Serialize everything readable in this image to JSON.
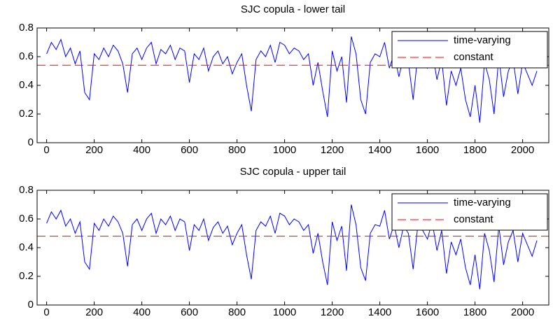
{
  "chart_data": [
    {
      "type": "line",
      "title": "SJC copula - lower tail",
      "x": [
        0,
        20,
        40,
        60,
        80,
        100,
        120,
        140,
        160,
        180,
        200,
        220,
        240,
        260,
        280,
        300,
        320,
        340,
        360,
        380,
        400,
        420,
        440,
        460,
        480,
        500,
        520,
        540,
        560,
        580,
        600,
        620,
        640,
        660,
        680,
        700,
        720,
        740,
        760,
        780,
        800,
        820,
        840,
        860,
        880,
        900,
        920,
        940,
        960,
        980,
        1000,
        1020,
        1040,
        1060,
        1080,
        1100,
        1120,
        1140,
        1160,
        1180,
        1200,
        1220,
        1240,
        1260,
        1280,
        1300,
        1320,
        1340,
        1360,
        1380,
        1400,
        1420,
        1440,
        1460,
        1480,
        1500,
        1520,
        1540,
        1560,
        1580,
        1600,
        1620,
        1640,
        1660,
        1680,
        1700,
        1720,
        1740,
        1760,
        1780,
        1800,
        1820,
        1840,
        1860,
        1880,
        1900,
        1920,
        1940,
        1960,
        1980,
        2000,
        2020,
        2040,
        2060
      ],
      "series": [
        {
          "name": "time-varying",
          "color": "#0000ff",
          "linestyle": "solid",
          "values": [
            0.62,
            0.7,
            0.65,
            0.72,
            0.6,
            0.66,
            0.55,
            0.64,
            0.35,
            0.3,
            0.62,
            0.58,
            0.66,
            0.6,
            0.68,
            0.64,
            0.55,
            0.35,
            0.62,
            0.66,
            0.58,
            0.66,
            0.7,
            0.55,
            0.65,
            0.62,
            0.68,
            0.58,
            0.66,
            0.64,
            0.42,
            0.62,
            0.58,
            0.66,
            0.5,
            0.6,
            0.64,
            0.55,
            0.6,
            0.48,
            0.56,
            0.62,
            0.4,
            0.22,
            0.58,
            0.64,
            0.6,
            0.68,
            0.56,
            0.7,
            0.68,
            0.62,
            0.66,
            0.64,
            0.58,
            0.62,
            0.4,
            0.56,
            0.36,
            0.18,
            0.64,
            0.5,
            0.6,
            0.28,
            0.74,
            0.62,
            0.3,
            0.2,
            0.56,
            0.62,
            0.6,
            0.7,
            0.52,
            0.62,
            0.46,
            0.6,
            0.56,
            0.3,
            0.62,
            0.58,
            0.52,
            0.64,
            0.44,
            0.58,
            0.26,
            0.5,
            0.4,
            0.52,
            0.3,
            0.18,
            0.4,
            0.14,
            0.56,
            0.44,
            0.2,
            0.6,
            0.32,
            0.5,
            0.58,
            0.34,
            0.56,
            0.48,
            0.4,
            0.5
          ]
        },
        {
          "name": "constant",
          "color": "#ff0000",
          "linestyle": "dashed",
          "x": [
            -40,
            2110
          ],
          "values": [
            0.54,
            0.54
          ]
        }
      ],
      "xlim": [
        -40,
        2110
      ],
      "ylim": [
        0,
        0.8
      ],
      "xticks": [
        0,
        200,
        400,
        600,
        800,
        1000,
        1200,
        1400,
        1600,
        1800,
        2000
      ],
      "yticks": [
        0,
        0.2,
        0.4,
        0.6,
        0.8
      ],
      "legend": "upper right"
    },
    {
      "type": "line",
      "title": "SJC copula - upper tail",
      "x": [
        0,
        20,
        40,
        60,
        80,
        100,
        120,
        140,
        160,
        180,
        200,
        220,
        240,
        260,
        280,
        300,
        320,
        340,
        360,
        380,
        400,
        420,
        440,
        460,
        480,
        500,
        520,
        540,
        560,
        580,
        600,
        620,
        640,
        660,
        680,
        700,
        720,
        740,
        760,
        780,
        800,
        820,
        840,
        860,
        880,
        900,
        920,
        940,
        960,
        980,
        1000,
        1020,
        1040,
        1060,
        1080,
        1100,
        1120,
        1140,
        1160,
        1180,
        1200,
        1220,
        1240,
        1260,
        1280,
        1300,
        1320,
        1340,
        1360,
        1380,
        1400,
        1420,
        1440,
        1460,
        1480,
        1500,
        1520,
        1540,
        1560,
        1580,
        1600,
        1620,
        1640,
        1660,
        1680,
        1700,
        1720,
        1740,
        1760,
        1780,
        1800,
        1820,
        1840,
        1860,
        1880,
        1900,
        1920,
        1940,
        1960,
        1980,
        2000,
        2020,
        2040,
        2060
      ],
      "series": [
        {
          "name": "time-varying",
          "color": "#0000ff",
          "linestyle": "solid",
          "values": [
            0.57,
            0.65,
            0.6,
            0.66,
            0.55,
            0.6,
            0.5,
            0.58,
            0.3,
            0.25,
            0.57,
            0.52,
            0.6,
            0.55,
            0.62,
            0.58,
            0.5,
            0.27,
            0.56,
            0.6,
            0.52,
            0.6,
            0.64,
            0.5,
            0.6,
            0.56,
            0.62,
            0.52,
            0.6,
            0.58,
            0.38,
            0.56,
            0.52,
            0.6,
            0.45,
            0.54,
            0.58,
            0.5,
            0.55,
            0.42,
            0.5,
            0.56,
            0.35,
            0.18,
            0.52,
            0.58,
            0.55,
            0.62,
            0.5,
            0.64,
            0.62,
            0.56,
            0.6,
            0.58,
            0.52,
            0.56,
            0.36,
            0.5,
            0.3,
            0.14,
            0.58,
            0.45,
            0.55,
            0.24,
            0.7,
            0.56,
            0.26,
            0.17,
            0.5,
            0.56,
            0.55,
            0.66,
            0.46,
            0.56,
            0.4,
            0.55,
            0.5,
            0.25,
            0.56,
            0.52,
            0.46,
            0.58,
            0.38,
            0.52,
            0.22,
            0.44,
            0.35,
            0.46,
            0.26,
            0.14,
            0.35,
            0.11,
            0.5,
            0.38,
            0.16,
            0.55,
            0.28,
            0.44,
            0.52,
            0.3,
            0.5,
            0.42,
            0.34,
            0.45
          ]
        },
        {
          "name": "constant",
          "color": "#ff0000",
          "linestyle": "dashed",
          "x": [
            -40,
            2110
          ],
          "values": [
            0.48,
            0.48
          ]
        }
      ],
      "xlim": [
        -40,
        2110
      ],
      "ylim": [
        0,
        0.8
      ],
      "xticks": [
        0,
        200,
        400,
        600,
        800,
        1000,
        1200,
        1400,
        1600,
        1800,
        2000
      ],
      "yticks": [
        0,
        0.2,
        0.4,
        0.6,
        0.8
      ],
      "legend": "upper right"
    }
  ]
}
